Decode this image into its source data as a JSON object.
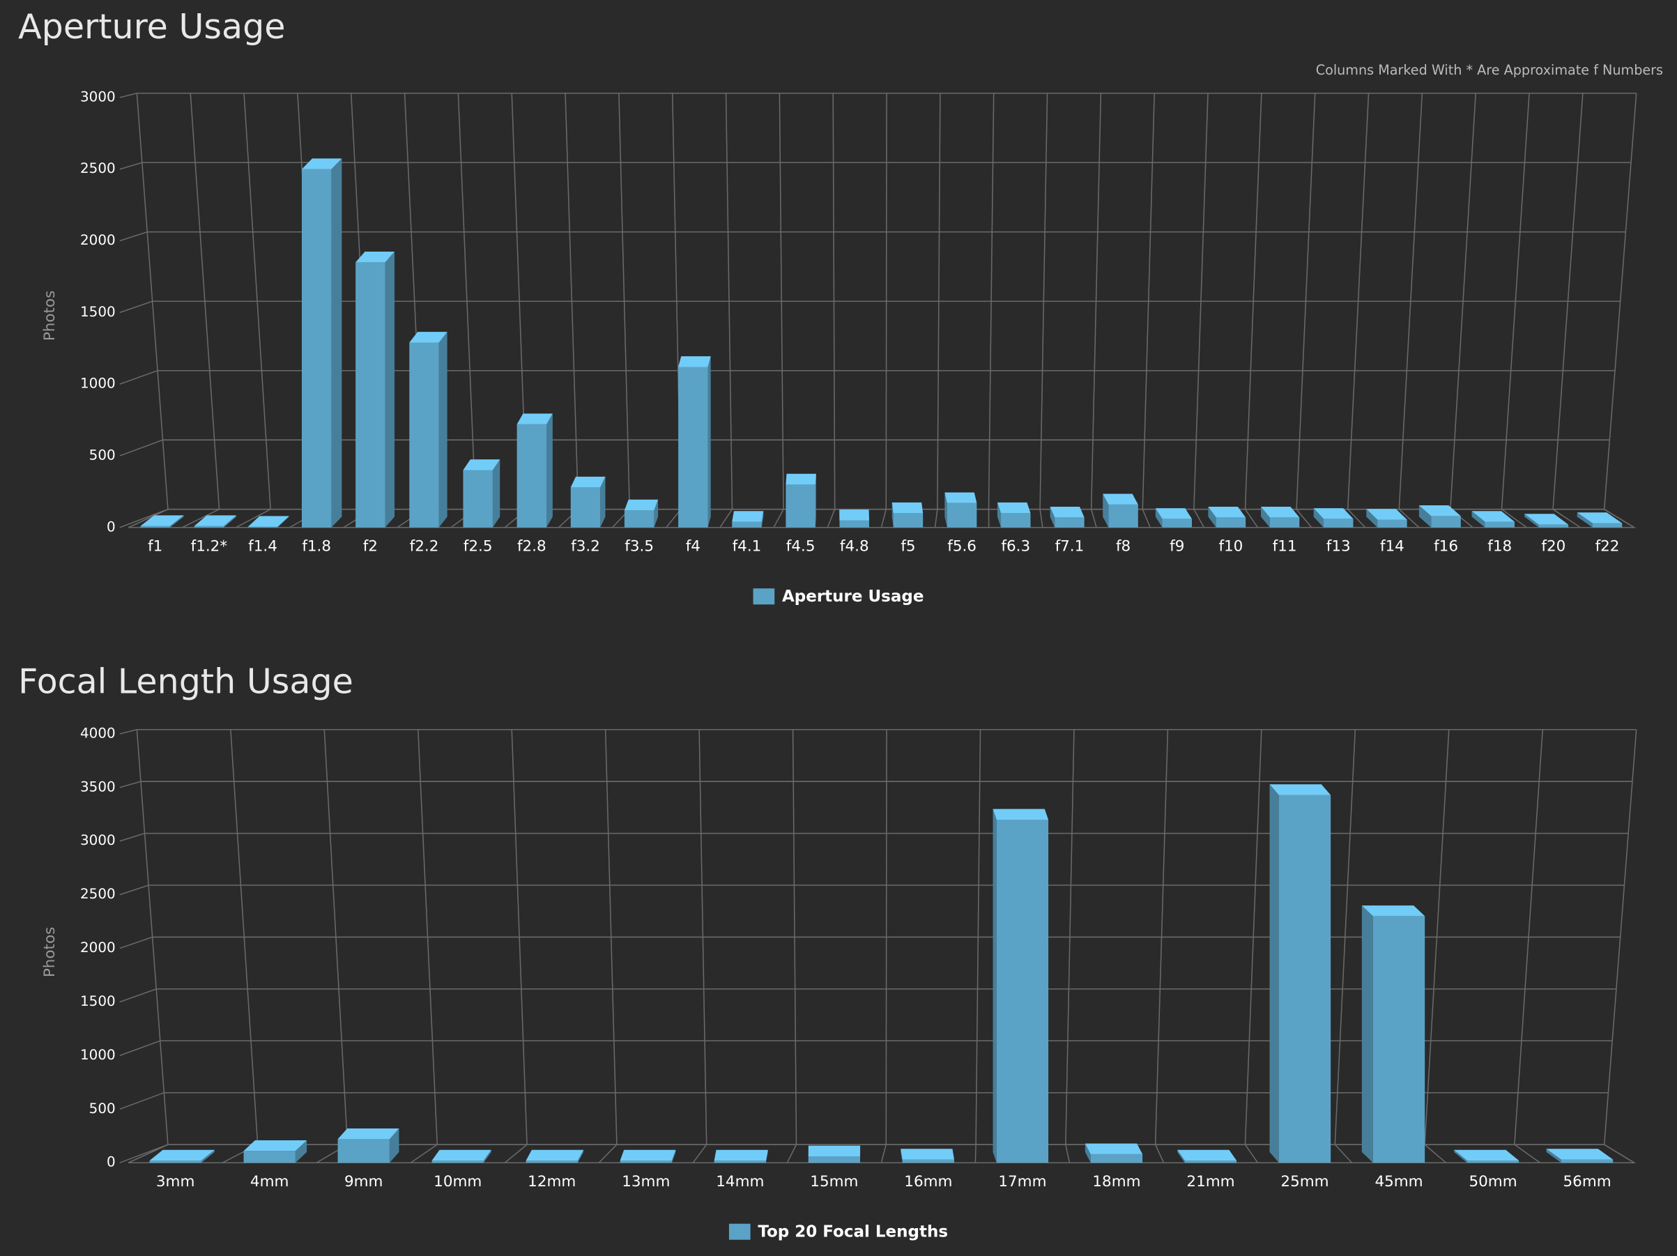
{
  "chart_data": [
    {
      "type": "bar3d",
      "title": "Aperture Usage",
      "subtitle": "Columns Marked With * Are Approximate f Numbers",
      "y_label": "Photos",
      "categories": [
        "f1",
        "f1.2*",
        "f1.4",
        "f1.8",
        "f2",
        "f2.2",
        "f2.5",
        "f2.8",
        "f3.2",
        "f3.5",
        "f4",
        "f4.1",
        "f4.5",
        "f4.8",
        "f5",
        "f5.6",
        "f6.3",
        "f7.1",
        "f8",
        "f9",
        "f10",
        "f11",
        "f13",
        "f14",
        "f16",
        "f18",
        "f20",
        "f22"
      ],
      "series": [
        {
          "name": "Aperture Usage",
          "color": "#5ba3c6",
          "values": [
            10,
            10,
            5,
            2500,
            1850,
            1290,
            400,
            720,
            280,
            120,
            1120,
            40,
            300,
            50,
            100,
            170,
            100,
            70,
            160,
            60,
            70,
            70,
            60,
            55,
            80,
            40,
            20,
            30
          ]
        }
      ],
      "ylim": [
        0,
        3000
      ],
      "yticks": [
        0,
        500,
        1000,
        1500,
        2000,
        2500,
        3000
      ],
      "grid": true,
      "legend": "bottom"
    },
    {
      "type": "bar3d",
      "title": "Focal Length Usage",
      "y_label": "Photos",
      "categories": [
        "3mm",
        "4mm",
        "9mm",
        "10mm",
        "12mm",
        "13mm",
        "14mm",
        "15mm",
        "16mm",
        "17mm",
        "18mm",
        "21mm",
        "25mm",
        "45mm",
        "50mm",
        "56mm"
      ],
      "series": [
        {
          "name": "Top 20 Focal Lengths",
          "color": "#5ba3c6",
          "values": [
            20,
            110,
            220,
            20,
            20,
            20,
            20,
            60,
            30,
            3200,
            80,
            20,
            3430,
            2300,
            20,
            30
          ]
        }
      ],
      "ylim": [
        0,
        4000
      ],
      "yticks": [
        0,
        500,
        1000,
        1500,
        2000,
        2500,
        3000,
        3500,
        4000
      ],
      "grid": true,
      "legend": "bottom"
    }
  ]
}
